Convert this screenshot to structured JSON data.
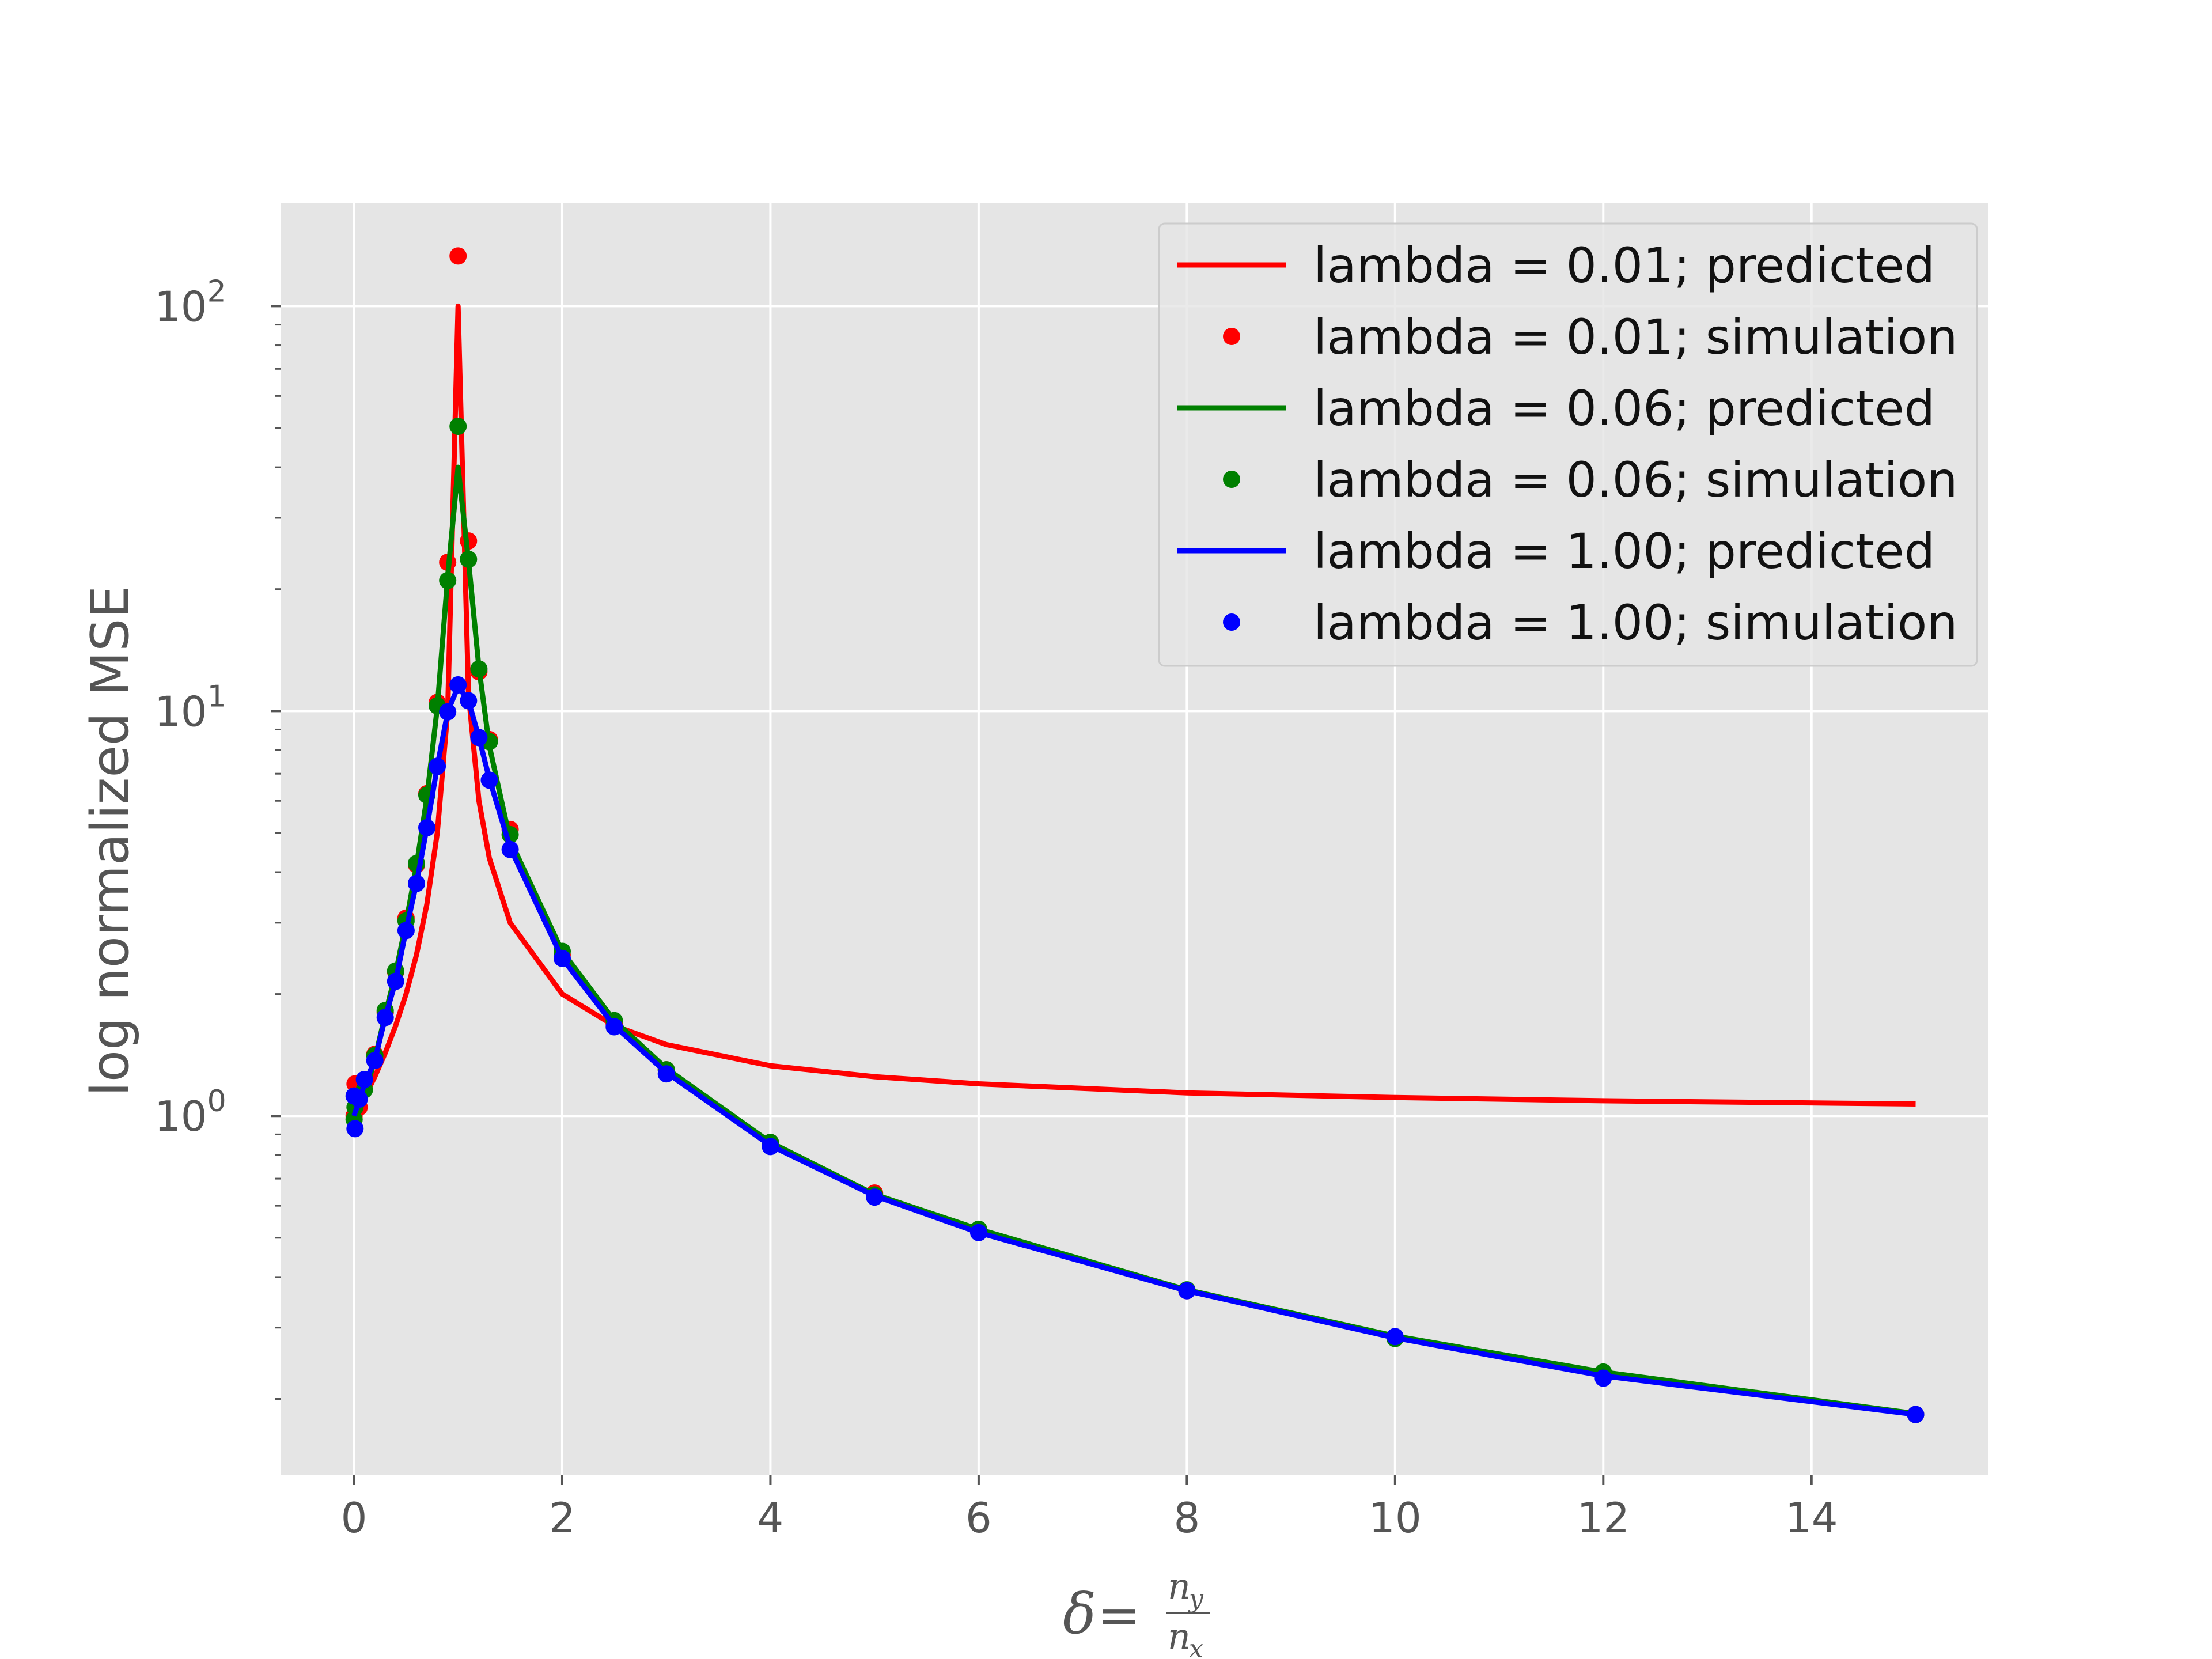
{
  "chart_data": {
    "type": "line",
    "title": "",
    "xlabel": "δ = n_y / n_x",
    "xlabel_parts": {
      "lhs": "δ",
      "eq": "=",
      "num": "n",
      "num_sub": "y",
      "den": "n",
      "den_sub": "x"
    },
    "ylabel": "log normalized MSE",
    "xlim": [
      -0.7,
      15.7
    ],
    "ylim": [
      0.13,
      180
    ],
    "yscale": "log",
    "grid": true,
    "legend_position": "top-right",
    "x_ticks": [
      0,
      2,
      4,
      6,
      8,
      10,
      12,
      14
    ],
    "x_tick_labels": [
      "0",
      "2",
      "4",
      "6",
      "8",
      "10",
      "12",
      "14"
    ],
    "y_ticks": [
      1,
      10,
      100
    ],
    "y_tick_labels": [
      {
        "base": "10",
        "exp": "0"
      },
      {
        "base": "10",
        "exp": "1"
      },
      {
        "base": "10",
        "exp": "2"
      }
    ],
    "x": [
      0.001,
      0.01,
      0.05,
      0.1,
      0.2,
      0.3,
      0.4,
      0.5,
      0.6,
      0.7,
      0.8,
      0.9,
      1.0,
      1.1,
      1.2,
      1.3,
      1.5,
      2.0,
      2.5,
      3.0,
      4.0,
      5.0,
      6.0,
      8.0,
      10.0,
      12.0,
      15.0
    ],
    "series": [
      {
        "name": "lambda = 0.01; predicted",
        "kind": "line",
        "color": "#ff0000",
        "values": [
          1.0,
          1.0,
          1.05,
          1.11,
          1.25,
          1.43,
          1.67,
          2.0,
          2.5,
          3.33,
          5.0,
          10.0,
          100.0,
          11.0,
          6.0,
          4.33,
          3.0,
          2.0,
          1.67,
          1.5,
          1.33,
          1.25,
          1.2,
          1.14,
          1.11,
          1.09,
          1.07
        ]
      },
      {
        "name": "lambda = 0.01; simulation",
        "kind": "points",
        "color": "#ff0000",
        "values": [
          1.0,
          1.2,
          1.05,
          1.2,
          1.42,
          1.8,
          2.27,
          3.08,
          4.17,
          6.25,
          10.5,
          23.3,
          133.0,
          26.3,
          12.5,
          8.5,
          5.1,
          2.5,
          1.68,
          1.3,
          0.86,
          0.645,
          0.52,
          0.37,
          0.283,
          0.23,
          0.183
        ]
      },
      {
        "name": "lambda = 0.06; predicted",
        "kind": "line",
        "color": "#008000",
        "values": [
          1.0,
          1.0,
          1.05,
          1.12,
          1.38,
          1.78,
          2.25,
          3.0,
          4.15,
          6.1,
          10.2,
          21.5,
          40.0,
          23.5,
          12.8,
          8.2,
          4.8,
          2.55,
          1.72,
          1.31,
          0.86,
          0.64,
          0.525,
          0.372,
          0.286,
          0.233,
          0.184
        ]
      },
      {
        "name": "lambda = 0.06; simulation",
        "kind": "points",
        "color": "#008000",
        "values": [
          0.98,
          1.05,
          1.1,
          1.16,
          1.41,
          1.82,
          2.28,
          3.03,
          4.2,
          6.2,
          10.3,
          21.0,
          50.5,
          23.7,
          12.7,
          8.4,
          4.95,
          2.55,
          1.72,
          1.3,
          0.86,
          0.638,
          0.525,
          0.372,
          0.282,
          0.233,
          0.183
        ]
      },
      {
        "name": "lambda = 1.00; predicted",
        "kind": "line",
        "color": "#0000ff",
        "values": [
          1.0,
          1.02,
          1.08,
          1.2,
          1.37,
          1.75,
          2.15,
          2.88,
          3.75,
          5.15,
          7.3,
          9.95,
          11.5,
          10.6,
          8.6,
          6.8,
          4.6,
          2.45,
          1.67,
          1.28,
          0.845,
          0.635,
          0.515,
          0.37,
          0.283,
          0.228,
          0.183
        ]
      },
      {
        "name": "lambda = 1.00; simulation",
        "kind": "points",
        "color": "#0000ff",
        "values": [
          1.12,
          0.93,
          1.1,
          1.23,
          1.37,
          1.75,
          2.15,
          2.87,
          3.75,
          5.15,
          7.3,
          9.95,
          11.6,
          10.6,
          8.6,
          6.75,
          4.55,
          2.45,
          1.66,
          1.27,
          0.84,
          0.63,
          0.515,
          0.37,
          0.285,
          0.225,
          0.183
        ]
      }
    ],
    "colors": {
      "background": "#e5e5e5",
      "grid": "#ffffff",
      "text": "#555555"
    }
  }
}
